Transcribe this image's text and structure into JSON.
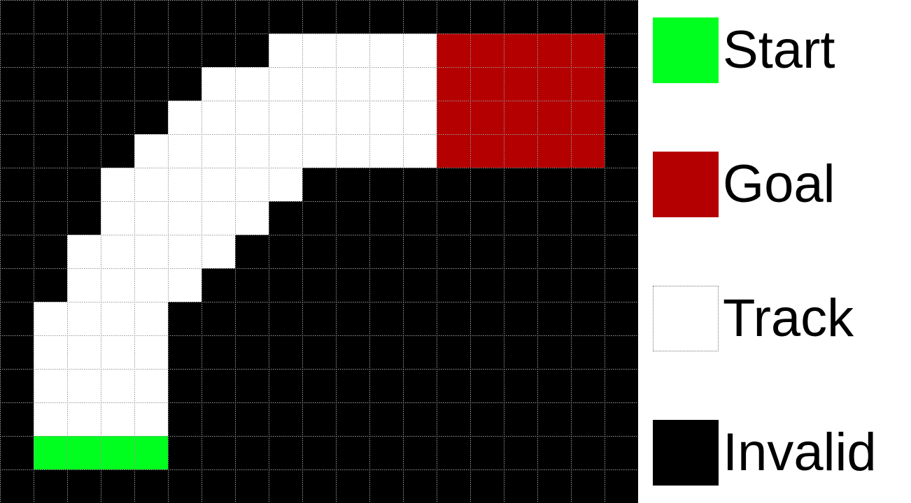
{
  "colors": {
    "start": "#00ff1e",
    "goal": "#b40000",
    "track": "#ffffff",
    "invalid": "#000000",
    "gridline": "#9a9a9a"
  },
  "grid": {
    "legend_key": {
      "S": "start",
      "G": "goal",
      "T": "track",
      "X": "invalid"
    },
    "rows": [
      "XXXXXXXXXXXXXXXXXXX",
      "XXXXXXXXTTTTTGGGGGX",
      "XXXXXXTTTTTTTGGGGGX",
      "XXXXXTTTTTTTTGGGGGX",
      "XXXXTTTTTTTTTGGGGGX",
      "XXXTTTTTTXXXXXXXXXX",
      "XXXTTTTTXXXXXXXXXXX",
      "XXTTTTTXXXXXXXXXXXX",
      "XXTTTTXXXXXXXXXXXXX",
      "XTTTTXXXXXXXXXXXXXX",
      "XTTTTXXXXXXXXXXXXXX",
      "XTTTTXXXXXXXXXXXXXX",
      "XTTTTXXXXXXXXXXXXXX",
      "XSSSSXXXXXXXXXXXXXX",
      "XXXXXXXXXXXXXXXXXXX"
    ]
  },
  "legend": [
    {
      "key": "start",
      "label": "Start"
    },
    {
      "key": "goal",
      "label": "Goal"
    },
    {
      "key": "track",
      "label": "Track"
    },
    {
      "key": "invalid",
      "label": "Invalid"
    }
  ]
}
